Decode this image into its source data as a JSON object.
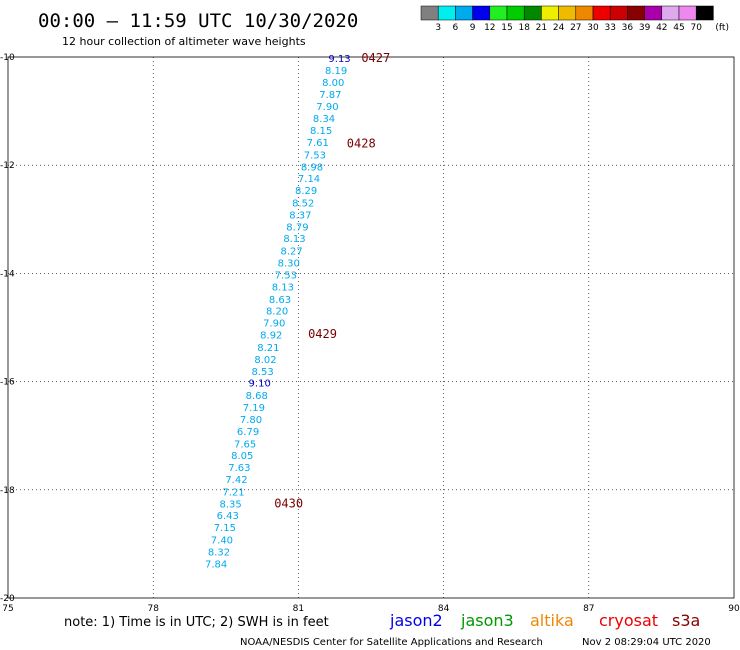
{
  "header": {
    "title": "00:00 – 11:59 UTC 10/30/2020",
    "subtitle": "12 hour collection of altimeter wave heights"
  },
  "legend": {
    "colors": [
      "#808080",
      "#00eeee",
      "#00aaee",
      "#0000ee",
      "#22ee22",
      "#00cc00",
      "#008800",
      "#eeee00",
      "#eebb00",
      "#ee8800",
      "#ee0000",
      "#cc0000",
      "#880000",
      "#aa00aa",
      "#ddaaee",
      "#ee88ee",
      "#000000"
    ],
    "labels": [
      "3",
      "6",
      "9",
      "12",
      "15",
      "18",
      "21",
      "24",
      "27",
      "30",
      "33",
      "36",
      "39",
      "42",
      "45",
      "70"
    ],
    "unit": "(ft)"
  },
  "chart_data": {
    "type": "scatter",
    "xlim": [
      75,
      90
    ],
    "ylim": [
      -20,
      -10
    ],
    "xticks": [
      "75",
      "78",
      "81",
      "84",
      "87",
      "90"
    ],
    "yticks": [
      "-10",
      "-12",
      "-14",
      "-16",
      "-18",
      "-20"
    ],
    "grid": true,
    "series": [
      {
        "name": "s3a",
        "points": [
          {
            "x": 81.85,
            "y": -10.02,
            "v": "9.13",
            "c": "#0000cc"
          },
          {
            "x": 81.78,
            "y": -10.24,
            "v": "8.19",
            "c": "#00aaee"
          },
          {
            "x": 81.72,
            "y": -10.46,
            "v": "8.00",
            "c": "#00aaee"
          },
          {
            "x": 81.66,
            "y": -10.68,
            "v": "7.87",
            "c": "#00aaee"
          },
          {
            "x": 81.6,
            "y": -10.91,
            "v": "7.90",
            "c": "#00aaee"
          },
          {
            "x": 81.53,
            "y": -11.13,
            "v": "8.34",
            "c": "#00aaee"
          },
          {
            "x": 81.47,
            "y": -11.35,
            "v": "8.15",
            "c": "#00aaee"
          },
          {
            "x": 81.4,
            "y": -11.57,
            "v": "7.61",
            "c": "#00aaee"
          },
          {
            "x": 81.34,
            "y": -11.8,
            "v": "7.53",
            "c": "#00aaee"
          },
          {
            "x": 81.28,
            "y": -12.02,
            "v": "8.98",
            "c": "#00aaee"
          },
          {
            "x": 81.22,
            "y": -12.24,
            "v": "7.14",
            "c": "#00aaee"
          },
          {
            "x": 81.16,
            "y": -12.46,
            "v": "8.29",
            "c": "#00aaee"
          },
          {
            "x": 81.1,
            "y": -12.69,
            "v": "8.52",
            "c": "#00aaee"
          },
          {
            "x": 81.04,
            "y": -12.91,
            "v": "8.37",
            "c": "#00aaee"
          },
          {
            "x": 80.98,
            "y": -13.13,
            "v": "8.79",
            "c": "#00aaee"
          },
          {
            "x": 80.92,
            "y": -13.35,
            "v": "8.13",
            "c": "#00aaee"
          },
          {
            "x": 80.86,
            "y": -13.58,
            "v": "8.27",
            "c": "#00aaee"
          },
          {
            "x": 80.8,
            "y": -13.8,
            "v": "8.30",
            "c": "#00aaee"
          },
          {
            "x": 80.74,
            "y": -14.02,
            "v": "7.53",
            "c": "#00aaee"
          },
          {
            "x": 80.68,
            "y": -14.24,
            "v": "8.13",
            "c": "#00aaee"
          },
          {
            "x": 80.62,
            "y": -14.47,
            "v": "8.63",
            "c": "#00aaee"
          },
          {
            "x": 80.56,
            "y": -14.69,
            "v": "8.20",
            "c": "#00aaee"
          },
          {
            "x": 80.5,
            "y": -14.91,
            "v": "7.90",
            "c": "#00aaee"
          },
          {
            "x": 80.44,
            "y": -15.13,
            "v": "8.92",
            "c": "#00aaee"
          },
          {
            "x": 80.38,
            "y": -15.36,
            "v": "8.21",
            "c": "#00aaee"
          },
          {
            "x": 80.32,
            "y": -15.58,
            "v": "8.02",
            "c": "#00aaee"
          },
          {
            "x": 80.26,
            "y": -15.8,
            "v": "8.53",
            "c": "#00aaee"
          },
          {
            "x": 80.2,
            "y": -16.02,
            "v": "9.10",
            "c": "#0000cc"
          },
          {
            "x": 80.14,
            "y": -16.25,
            "v": "8.68",
            "c": "#00aaee"
          },
          {
            "x": 80.08,
            "y": -16.47,
            "v": "7.19",
            "c": "#00aaee"
          },
          {
            "x": 80.02,
            "y": -16.69,
            "v": "7.80",
            "c": "#00aaee"
          },
          {
            "x": 79.96,
            "y": -16.91,
            "v": "6.79",
            "c": "#00aaee"
          },
          {
            "x": 79.9,
            "y": -17.14,
            "v": "7.65",
            "c": "#00aaee"
          },
          {
            "x": 79.84,
            "y": -17.36,
            "v": "8.05",
            "c": "#00aaee"
          },
          {
            "x": 79.78,
            "y": -17.58,
            "v": "7.63",
            "c": "#00aaee"
          },
          {
            "x": 79.72,
            "y": -17.8,
            "v": "7.42",
            "c": "#00aaee"
          },
          {
            "x": 79.66,
            "y": -18.03,
            "v": "7.21",
            "c": "#00aaee"
          },
          {
            "x": 79.6,
            "y": -18.25,
            "v": "8.35",
            "c": "#00aaee"
          },
          {
            "x": 79.54,
            "y": -18.47,
            "v": "6.43",
            "c": "#00aaee"
          },
          {
            "x": 79.48,
            "y": -18.69,
            "v": "7.15",
            "c": "#00aaee"
          },
          {
            "x": 79.42,
            "y": -18.92,
            "v": "7.40",
            "c": "#00aaee"
          },
          {
            "x": 79.36,
            "y": -19.14,
            "v": "8.32",
            "c": "#00aaee"
          },
          {
            "x": 79.3,
            "y": -19.36,
            "v": "7.84",
            "c": "#00aaee"
          }
        ]
      }
    ],
    "annotations": [
      {
        "text": "0427",
        "x": 82.3,
        "y": -10.02
      },
      {
        "text": "0428",
        "x": 82.0,
        "y": -11.6
      },
      {
        "text": "0429",
        "x": 81.2,
        "y": -15.12
      },
      {
        "text": "0430",
        "x": 80.5,
        "y": -18.25
      }
    ]
  },
  "note": "note: 1) Time is in UTC; 2) SWH is in feet",
  "satellites": [
    {
      "name": "jason2",
      "color": "#0000ee"
    },
    {
      "name": "jason3",
      "color": "#009900"
    },
    {
      "name": "altika",
      "color": "#ee8800"
    },
    {
      "name": "cryosat",
      "color": "#ee0000"
    },
    {
      "name": "s3a",
      "color": "#880000"
    }
  ],
  "footer": {
    "left": "NOAA/NESDIS Center for Satellite Applications and Research",
    "right": "Nov  2 08:29:04 UTC 2020"
  }
}
